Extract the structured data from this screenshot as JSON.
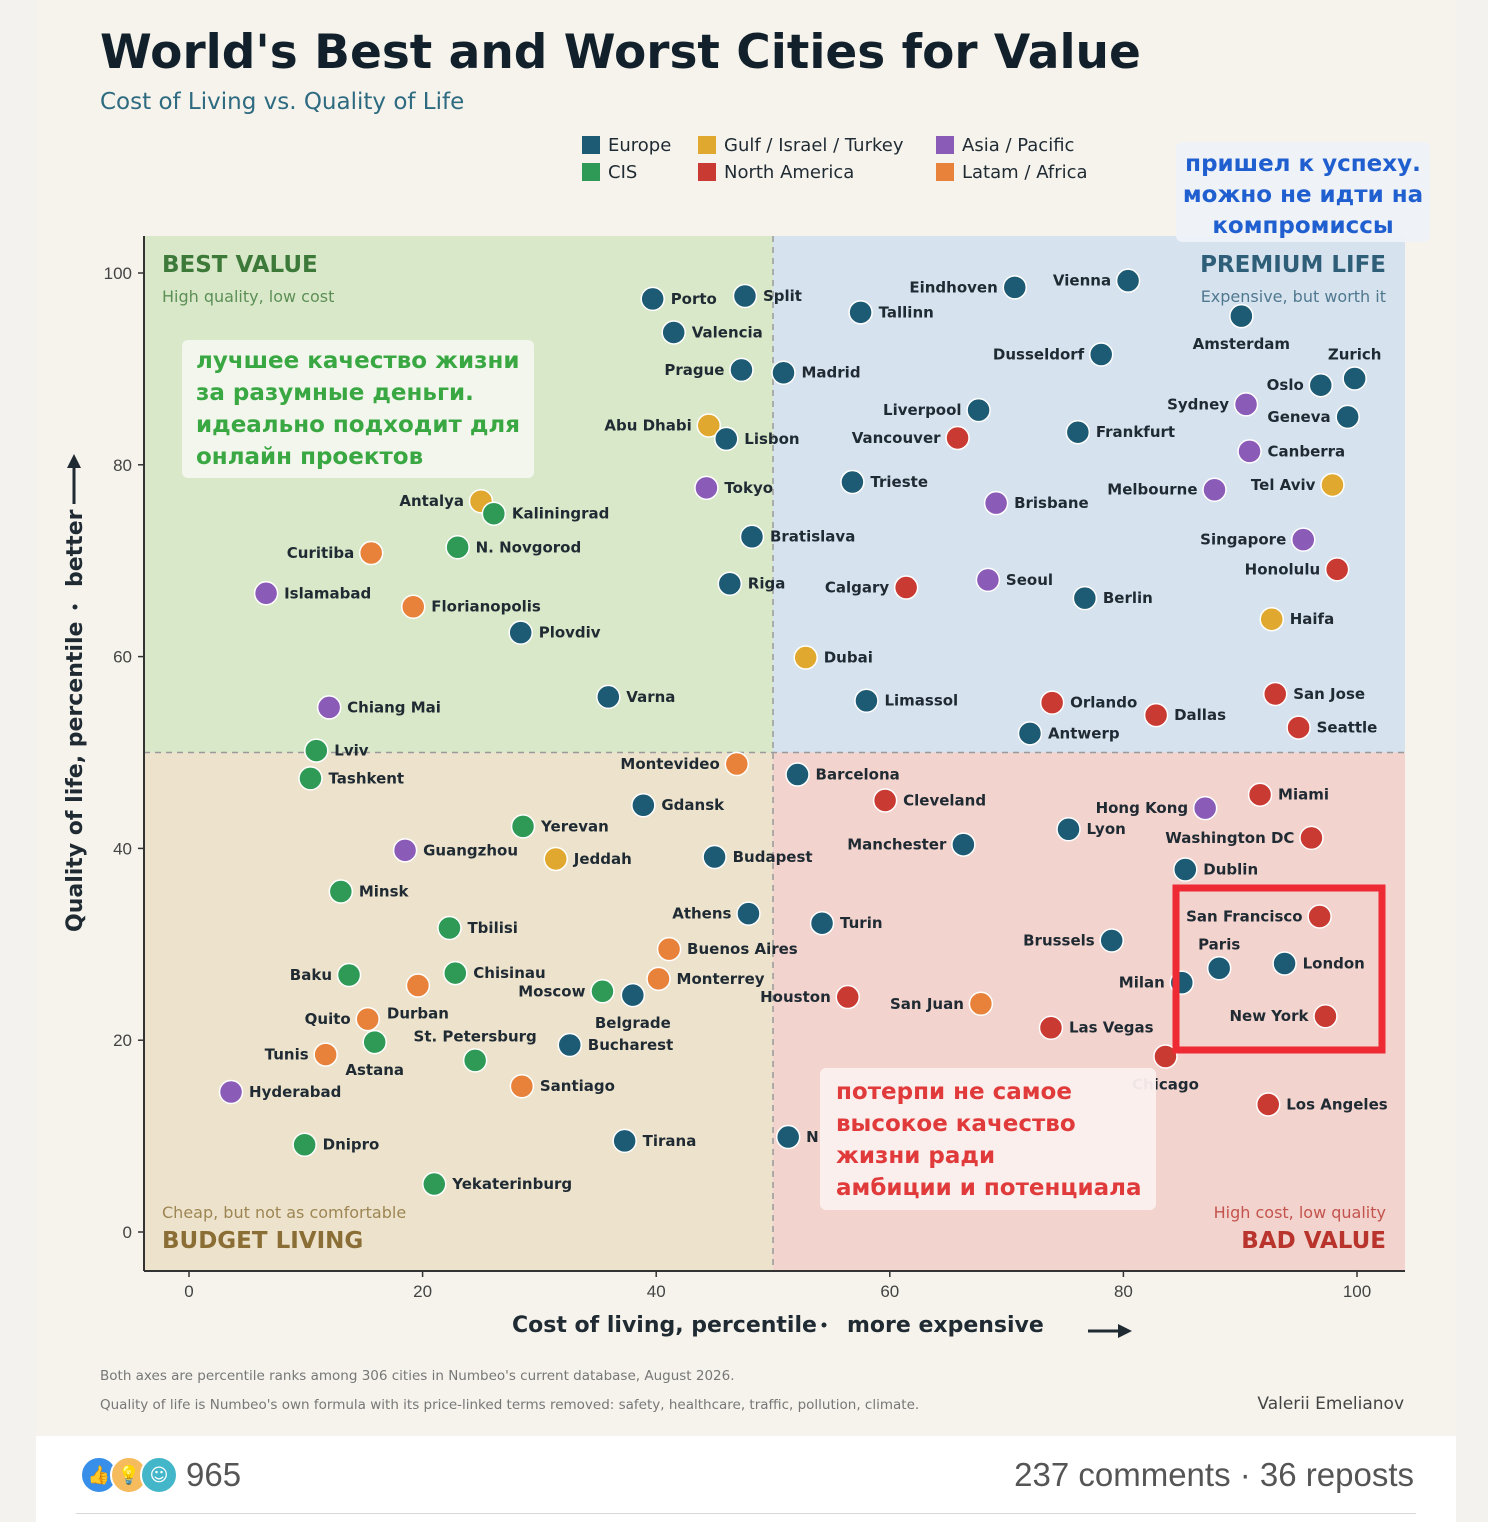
{
  "chart_data": {
    "type": "scatter",
    "title": "World's Best and Worst Cities for Value",
    "subtitle": "Cost of Living vs. Quality of Life",
    "xlabel": "Cost of living, percentile",
    "xlabel_suffix": "more expensive",
    "ylabel": "Quality of life, percentile",
    "ylabel_suffix": "better",
    "xlim": [
      -4,
      104
    ],
    "ylim": [
      -4,
      104
    ],
    "x_ticks": [
      0,
      20,
      40,
      60,
      80,
      100
    ],
    "y_ticks": [
      0,
      20,
      40,
      60,
      80,
      100
    ],
    "grid": false,
    "legend_position": "top-center",
    "legend": [
      {
        "key": "europe",
        "label": "Europe",
        "color": "#1d5a73"
      },
      {
        "key": "gulf",
        "label": "Gulf / Israel / Turkey",
        "color": "#e0a82e"
      },
      {
        "key": "asia",
        "label": "Asia / Pacific",
        "color": "#8b5bb8"
      },
      {
        "key": "cis",
        "label": "CIS",
        "color": "#2e9a55"
      },
      {
        "key": "na",
        "label": "North America",
        "color": "#c93a33"
      },
      {
        "key": "latam",
        "label": "Latam / Africa",
        "color": "#e8823b"
      }
    ],
    "quadrants": {
      "top_left": {
        "title": "BEST VALUE",
        "sub": "High quality, low cost",
        "fill": "#d9e8c8",
        "color": "#3d7a3a"
      },
      "top_right": {
        "title": "PREMIUM LIFE",
        "sub": "Expensive, but worth it",
        "fill": "#d6e2ee",
        "color": "#2e5e78"
      },
      "bottom_left": {
        "title": "BUDGET LIVING",
        "sub": "Cheap, but not as comfortable",
        "fill": "#ede3cc",
        "color": "#8a6e35"
      },
      "bottom_right": {
        "title": "BAD VALUE",
        "sub": "High cost, low quality",
        "fill": "#f2d3cd",
        "color": "#b8342d"
      }
    },
    "points": [
      {
        "name": "Porto",
        "x": 39.7,
        "y": 97.3,
        "g": "europe",
        "pos": "r"
      },
      {
        "name": "Split",
        "x": 47.6,
        "y": 97.6,
        "g": "europe",
        "pos": "r"
      },
      {
        "name": "Valencia",
        "x": 41.5,
        "y": 93.8,
        "g": "europe",
        "pos": "r"
      },
      {
        "name": "Prague",
        "x": 47.3,
        "y": 89.9,
        "g": "europe",
        "pos": "l"
      },
      {
        "name": "Madrid",
        "x": 50.9,
        "y": 89.6,
        "g": "europe",
        "pos": "r"
      },
      {
        "name": "Abu Dhabi",
        "x": 44.5,
        "y": 84.1,
        "g": "gulf",
        "pos": "l"
      },
      {
        "name": "Lisbon",
        "x": 46.0,
        "y": 82.7,
        "g": "europe",
        "pos": "r"
      },
      {
        "name": "Tokyo",
        "x": 44.3,
        "y": 77.6,
        "g": "asia",
        "pos": "r"
      },
      {
        "name": "Bratislava",
        "x": 48.2,
        "y": 72.5,
        "g": "europe",
        "pos": "r"
      },
      {
        "name": "Riga",
        "x": 46.3,
        "y": 67.6,
        "g": "europe",
        "pos": "r"
      },
      {
        "name": "Eindhoven",
        "x": 70.7,
        "y": 98.5,
        "g": "europe",
        "pos": "l"
      },
      {
        "name": "Vienna",
        "x": 80.4,
        "y": 99.2,
        "g": "europe",
        "pos": "l"
      },
      {
        "name": "Tallinn",
        "x": 57.5,
        "y": 95.9,
        "g": "europe",
        "pos": "r"
      },
      {
        "name": "Amsterdam",
        "x": 90.1,
        "y": 95.5,
        "g": "europe",
        "pos": "b"
      },
      {
        "name": "Dusseldorf",
        "x": 78.1,
        "y": 91.5,
        "g": "europe",
        "pos": "l"
      },
      {
        "name": "Zurich",
        "x": 99.8,
        "y": 89.0,
        "g": "europe",
        "pos": "t"
      },
      {
        "name": "Oslo",
        "x": 96.9,
        "y": 88.3,
        "g": "europe",
        "pos": "l"
      },
      {
        "name": "Sydney",
        "x": 90.5,
        "y": 86.3,
        "g": "asia",
        "pos": "l"
      },
      {
        "name": "Geneva",
        "x": 99.2,
        "y": 85.0,
        "g": "europe",
        "pos": "l"
      },
      {
        "name": "Liverpool",
        "x": 67.6,
        "y": 85.7,
        "g": "europe",
        "pos": "l"
      },
      {
        "name": "Frankfurt",
        "x": 76.1,
        "y": 83.4,
        "g": "europe",
        "pos": "r"
      },
      {
        "name": "Vancouver",
        "x": 65.8,
        "y": 82.8,
        "g": "na",
        "pos": "l"
      },
      {
        "name": "Canberra",
        "x": 90.8,
        "y": 81.4,
        "g": "asia",
        "pos": "r"
      },
      {
        "name": "Trieste",
        "x": 56.8,
        "y": 78.2,
        "g": "europe",
        "pos": "r"
      },
      {
        "name": "Brisbane",
        "x": 69.1,
        "y": 76.0,
        "g": "asia",
        "pos": "r"
      },
      {
        "name": "Melbourne",
        "x": 87.8,
        "y": 77.4,
        "g": "asia",
        "pos": "l"
      },
      {
        "name": "Tel Aviv",
        "x": 97.9,
        "y": 77.9,
        "g": "gulf",
        "pos": "l"
      },
      {
        "name": "Singapore",
        "x": 95.4,
        "y": 72.2,
        "g": "asia",
        "pos": "l"
      },
      {
        "name": "Honolulu",
        "x": 98.3,
        "y": 69.1,
        "g": "na",
        "pos": "l"
      },
      {
        "name": "Calgary",
        "x": 61.4,
        "y": 67.2,
        "g": "na",
        "pos": "l"
      },
      {
        "name": "Seoul",
        "x": 68.4,
        "y": 68.0,
        "g": "asia",
        "pos": "r"
      },
      {
        "name": "Berlin",
        "x": 76.7,
        "y": 66.1,
        "g": "europe",
        "pos": "r"
      },
      {
        "name": "Haifa",
        "x": 92.7,
        "y": 63.9,
        "g": "gulf",
        "pos": "r"
      },
      {
        "name": "Dubai",
        "x": 52.8,
        "y": 59.9,
        "g": "gulf",
        "pos": "r"
      },
      {
        "name": "Limassol",
        "x": 58.0,
        "y": 55.4,
        "g": "europe",
        "pos": "r"
      },
      {
        "name": "Orlando",
        "x": 73.9,
        "y": 55.2,
        "g": "na",
        "pos": "r"
      },
      {
        "name": "Dallas",
        "x": 82.8,
        "y": 53.9,
        "g": "na",
        "pos": "r"
      },
      {
        "name": "San Jose",
        "x": 93.0,
        "y": 56.1,
        "g": "na",
        "pos": "r"
      },
      {
        "name": "Antwerp",
        "x": 72.0,
        "y": 52.0,
        "g": "europe",
        "pos": "r"
      },
      {
        "name": "Seattle",
        "x": 95.0,
        "y": 52.6,
        "g": "na",
        "pos": "r"
      },
      {
        "name": "Antalya",
        "x": 25.0,
        "y": 76.2,
        "g": "gulf",
        "pos": "l"
      },
      {
        "name": "Kaliningrad",
        "x": 26.1,
        "y": 74.9,
        "g": "cis",
        "pos": "r"
      },
      {
        "name": "Curitiba",
        "x": 15.6,
        "y": 70.8,
        "g": "latam",
        "pos": "l"
      },
      {
        "name": "N. Novgorod",
        "x": 23.0,
        "y": 71.4,
        "g": "cis",
        "pos": "r"
      },
      {
        "name": "Islamabad",
        "x": 6.6,
        "y": 66.6,
        "g": "asia",
        "pos": "r"
      },
      {
        "name": "Florianopolis",
        "x": 19.2,
        "y": 65.2,
        "g": "latam",
        "pos": "r"
      },
      {
        "name": "Plovdiv",
        "x": 28.4,
        "y": 62.5,
        "g": "europe",
        "pos": "r"
      },
      {
        "name": "Chiang Mai",
        "x": 12.0,
        "y": 54.7,
        "g": "asia",
        "pos": "r"
      },
      {
        "name": "Varna",
        "x": 35.9,
        "y": 55.8,
        "g": "europe",
        "pos": "r"
      },
      {
        "name": "Lviv",
        "x": 10.9,
        "y": 50.2,
        "g": "cis",
        "pos": "r"
      },
      {
        "name": "Tashkent",
        "x": 10.4,
        "y": 47.3,
        "g": "cis",
        "pos": "r"
      },
      {
        "name": "Montevideo",
        "x": 46.9,
        "y": 48.8,
        "g": "latam",
        "pos": "l"
      },
      {
        "name": "Gdansk",
        "x": 38.9,
        "y": 44.5,
        "g": "europe",
        "pos": "r"
      },
      {
        "name": "Yerevan",
        "x": 28.6,
        "y": 42.3,
        "g": "cis",
        "pos": "r"
      },
      {
        "name": "Guangzhou",
        "x": 18.5,
        "y": 39.8,
        "g": "asia",
        "pos": "r"
      },
      {
        "name": "Jeddah",
        "x": 31.4,
        "y": 38.9,
        "g": "gulf",
        "pos": "r"
      },
      {
        "name": "Budapest",
        "x": 45.0,
        "y": 39.1,
        "g": "europe",
        "pos": "r"
      },
      {
        "name": "Minsk",
        "x": 13.0,
        "y": 35.5,
        "g": "cis",
        "pos": "r"
      },
      {
        "name": "Athens",
        "x": 47.9,
        "y": 33.2,
        "g": "europe",
        "pos": "l"
      },
      {
        "name": "Tbilisi",
        "x": 22.3,
        "y": 31.7,
        "g": "cis",
        "pos": "r"
      },
      {
        "name": "Buenos Aires",
        "x": 41.1,
        "y": 29.5,
        "g": "latam",
        "pos": "r"
      },
      {
        "name": "Baku",
        "x": 13.7,
        "y": 26.8,
        "g": "cis",
        "pos": "l"
      },
      {
        "name": "Chisinau",
        "x": 22.8,
        "y": 27.0,
        "g": "cis",
        "pos": "r"
      },
      {
        "name": "Durban",
        "x": 19.6,
        "y": 25.7,
        "g": "latam",
        "pos": "b"
      },
      {
        "name": "Monterrey",
        "x": 40.2,
        "y": 26.4,
        "g": "latam",
        "pos": "r"
      },
      {
        "name": "Moscow",
        "x": 35.4,
        "y": 25.1,
        "g": "cis",
        "pos": "l"
      },
      {
        "name": "Belgrade",
        "x": 38.0,
        "y": 24.7,
        "g": "europe",
        "pos": "b"
      },
      {
        "name": "Quito",
        "x": 15.3,
        "y": 22.2,
        "g": "latam",
        "pos": "l"
      },
      {
        "name": "St. Petersburg",
        "x": 24.5,
        "y": 17.9,
        "g": "cis",
        "pos": "t"
      },
      {
        "name": "Bucharest",
        "x": 32.6,
        "y": 19.5,
        "g": "europe",
        "pos": "r"
      },
      {
        "name": "Tunis",
        "x": 11.7,
        "y": 18.5,
        "g": "latam",
        "pos": "l"
      },
      {
        "name": "Astana",
        "x": 15.9,
        "y": 19.8,
        "g": "cis",
        "pos": "b"
      },
      {
        "name": "Hyderabad",
        "x": 3.6,
        "y": 14.6,
        "g": "asia",
        "pos": "r"
      },
      {
        "name": "Santiago",
        "x": 28.5,
        "y": 15.2,
        "g": "latam",
        "pos": "r"
      },
      {
        "name": "Dnipro",
        "x": 9.9,
        "y": 9.1,
        "g": "cis",
        "pos": "r"
      },
      {
        "name": "Tirana",
        "x": 37.3,
        "y": 9.5,
        "g": "europe",
        "pos": "r"
      },
      {
        "name": "Yekaterinburg",
        "x": 21.0,
        "y": 5.0,
        "g": "cis",
        "pos": "r"
      },
      {
        "name": "Barcelona",
        "x": 52.1,
        "y": 47.7,
        "g": "europe",
        "pos": "r"
      },
      {
        "name": "Cleveland",
        "x": 59.6,
        "y": 45.0,
        "g": "na",
        "pos": "r"
      },
      {
        "name": "Hong Kong",
        "x": 87.0,
        "y": 44.2,
        "g": "asia",
        "pos": "l"
      },
      {
        "name": "Miami",
        "x": 91.7,
        "y": 45.6,
        "g": "na",
        "pos": "r"
      },
      {
        "name": "Lyon",
        "x": 75.3,
        "y": 42.0,
        "g": "europe",
        "pos": "r"
      },
      {
        "name": "Manchester",
        "x": 66.3,
        "y": 40.4,
        "g": "europe",
        "pos": "l"
      },
      {
        "name": "Washington DC",
        "x": 96.1,
        "y": 41.1,
        "g": "na",
        "pos": "l"
      },
      {
        "name": "Dublin",
        "x": 85.3,
        "y": 37.8,
        "g": "europe",
        "pos": "r"
      },
      {
        "name": "Turin",
        "x": 54.2,
        "y": 32.2,
        "g": "europe",
        "pos": "r"
      },
      {
        "name": "San Francisco",
        "x": 96.8,
        "y": 32.9,
        "g": "na",
        "pos": "l"
      },
      {
        "name": "Brussels",
        "x": 79.0,
        "y": 30.4,
        "g": "europe",
        "pos": "l"
      },
      {
        "name": "Paris",
        "x": 88.2,
        "y": 27.5,
        "g": "europe",
        "pos": "t"
      },
      {
        "name": "London",
        "x": 93.8,
        "y": 28.0,
        "g": "europe",
        "pos": "r"
      },
      {
        "name": "Milan",
        "x": 85.0,
        "y": 26.0,
        "g": "europe",
        "pos": "l"
      },
      {
        "name": "Houston",
        "x": 56.4,
        "y": 24.5,
        "g": "na",
        "pos": "l"
      },
      {
        "name": "San Juan",
        "x": 67.8,
        "y": 23.8,
        "g": "latam",
        "pos": "l"
      },
      {
        "name": "New York",
        "x": 97.3,
        "y": 22.5,
        "g": "na",
        "pos": "l"
      },
      {
        "name": "Las Vegas",
        "x": 73.8,
        "y": 21.3,
        "g": "na",
        "pos": "r"
      },
      {
        "name": "Chicago",
        "x": 83.6,
        "y": 18.3,
        "g": "na",
        "pos": "b"
      },
      {
        "name": "Los Angeles",
        "x": 92.4,
        "y": 13.3,
        "g": "na",
        "pos": "r"
      },
      {
        "name": "N",
        "x": 51.3,
        "y": 9.9,
        "g": "europe",
        "pos": "r"
      }
    ],
    "footnotes": [
      "Both axes are percentile ranks among 306 cities in Numbeo's current database, August 2026.",
      "Quality of life is Numbeo's own formula with its price-linked terms removed: safety, healthcare, traffic, pollution, climate."
    ],
    "author": "Valerii Emelianov"
  },
  "annotations": {
    "top_right_note": [
      "пришел к успеху.",
      "можно не идти на",
      "компромиссы"
    ],
    "best_value_note": [
      "лучшее качество жизни",
      "за разумные деньги.",
      "идеально подходит для",
      "онлайн проектов"
    ],
    "bad_value_note": [
      "потерпи не самое",
      "высокое качество",
      "жизни ради",
      "амбиции и потенциала"
    ],
    "colors": {
      "blue": "#1f5fcf",
      "green": "#3aa842",
      "red": "#e03a3a"
    }
  },
  "social": {
    "reaction_count": "965",
    "engagement": "237 comments · 36 reposts",
    "reaction_icons": [
      "like-icon",
      "insightful-icon",
      "funny-icon"
    ]
  }
}
